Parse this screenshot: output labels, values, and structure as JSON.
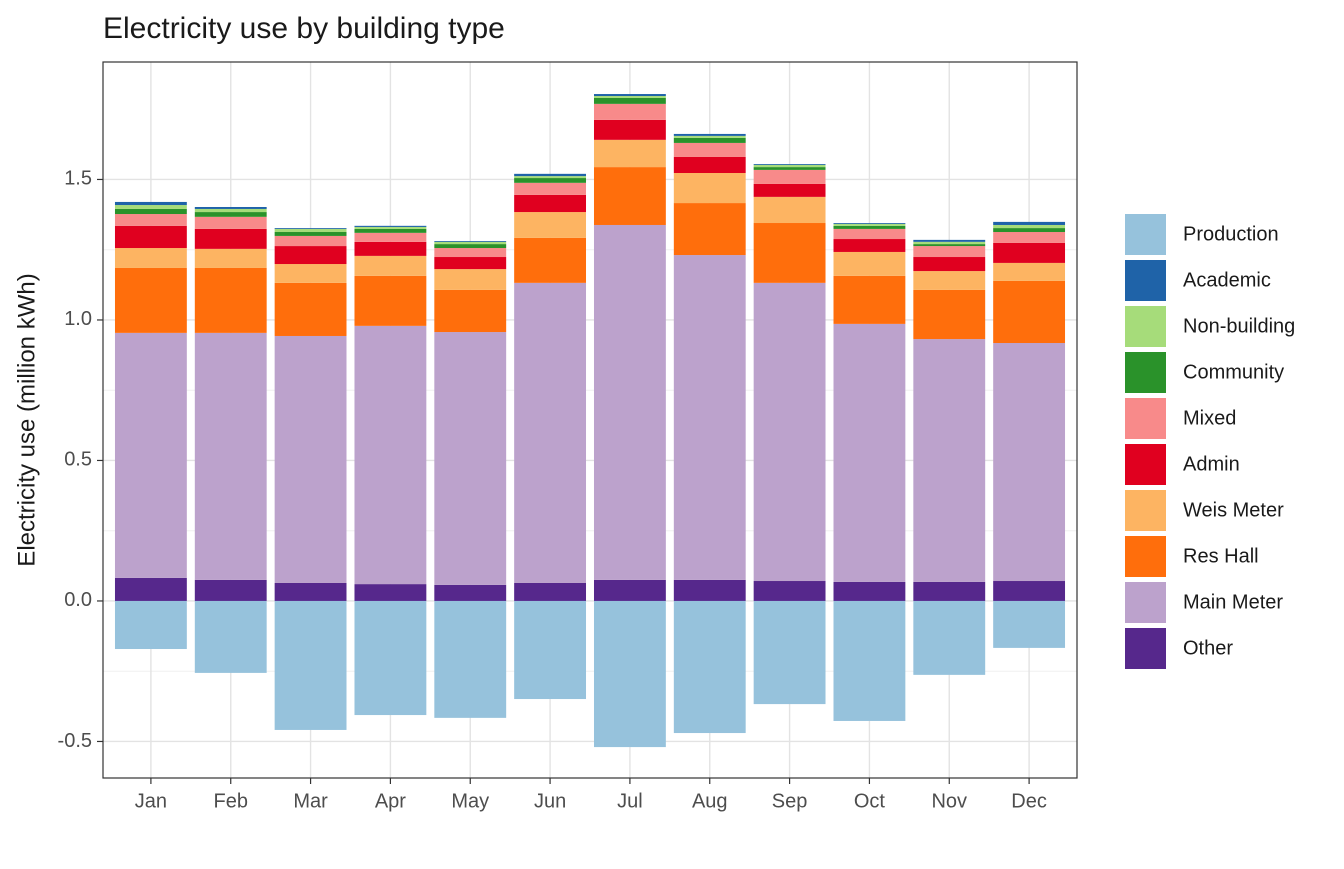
{
  "chart_data": {
    "type": "stacked_bar",
    "title": "Electricity use by building type",
    "y_label": "Electricity use (million kWh)",
    "categories": [
      "Jan",
      "Feb",
      "Mar",
      "Apr",
      "May",
      "Jun",
      "Jul",
      "Aug",
      "Sep",
      "Oct",
      "Nov",
      "Dec"
    ],
    "series": [
      {
        "name": "Production",
        "color": "#96c2dc",
        "values": [
          -0.171,
          -0.256,
          -0.459,
          -0.406,
          -0.416,
          -0.349,
          -0.52,
          -0.47,
          -0.367,
          -0.427,
          -0.263,
          -0.167
        ]
      },
      {
        "name": "Academic",
        "color": "#1f63a8",
        "values": [
          0.011,
          0.007,
          0.003,
          0.004,
          0.003,
          0.008,
          0.007,
          0.007,
          0.003,
          0.003,
          0.007,
          0.011
        ]
      },
      {
        "name": "Non-building",
        "color": "#a6dc7a",
        "values": [
          0.014,
          0.011,
          0.011,
          0.007,
          0.008,
          0.007,
          0.007,
          0.007,
          0.008,
          0.007,
          0.008,
          0.011
        ]
      },
      {
        "name": "Community",
        "color": "#2a922a",
        "values": [
          0.018,
          0.017,
          0.014,
          0.014,
          0.014,
          0.017,
          0.021,
          0.018,
          0.01,
          0.011,
          0.007,
          0.014
        ]
      },
      {
        "name": "Mixed",
        "color": "#f88a8a",
        "values": [
          0.042,
          0.043,
          0.036,
          0.032,
          0.032,
          0.043,
          0.057,
          0.05,
          0.05,
          0.036,
          0.039,
          0.039
        ]
      },
      {
        "name": "Admin",
        "color": "#e0001f",
        "values": [
          0.079,
          0.071,
          0.064,
          0.05,
          0.043,
          0.061,
          0.071,
          0.057,
          0.046,
          0.046,
          0.05,
          0.071
        ]
      },
      {
        "name": "Weis Meter",
        "color": "#fdb462",
        "values": [
          0.071,
          0.068,
          0.067,
          0.071,
          0.074,
          0.092,
          0.097,
          0.107,
          0.093,
          0.085,
          0.067,
          0.064
        ]
      },
      {
        "name": "Res Hall",
        "color": "#ff6e0c",
        "values": [
          0.231,
          0.231,
          0.189,
          0.178,
          0.15,
          0.16,
          0.206,
          0.185,
          0.213,
          0.171,
          0.175,
          0.221
        ]
      },
      {
        "name": "Main Meter",
        "color": "#bca2cc",
        "values": [
          0.872,
          0.879,
          0.879,
          0.919,
          0.9,
          1.068,
          1.263,
          1.156,
          1.061,
          0.918,
          0.864,
          0.847
        ]
      },
      {
        "name": "Other",
        "color": "#56288c",
        "values": [
          0.082,
          0.075,
          0.064,
          0.06,
          0.057,
          0.064,
          0.075,
          0.075,
          0.071,
          0.068,
          0.068,
          0.071
        ]
      }
    ],
    "ylim": [
      -0.63,
      1.918
    ],
    "yticks": [
      -0.5,
      {
        "value": 0,
        "label": "0.0"
      },
      0.5,
      {
        "value": 1,
        "label": "1.0"
      },
      1.5
    ],
    "grid": true,
    "legend": "right"
  }
}
